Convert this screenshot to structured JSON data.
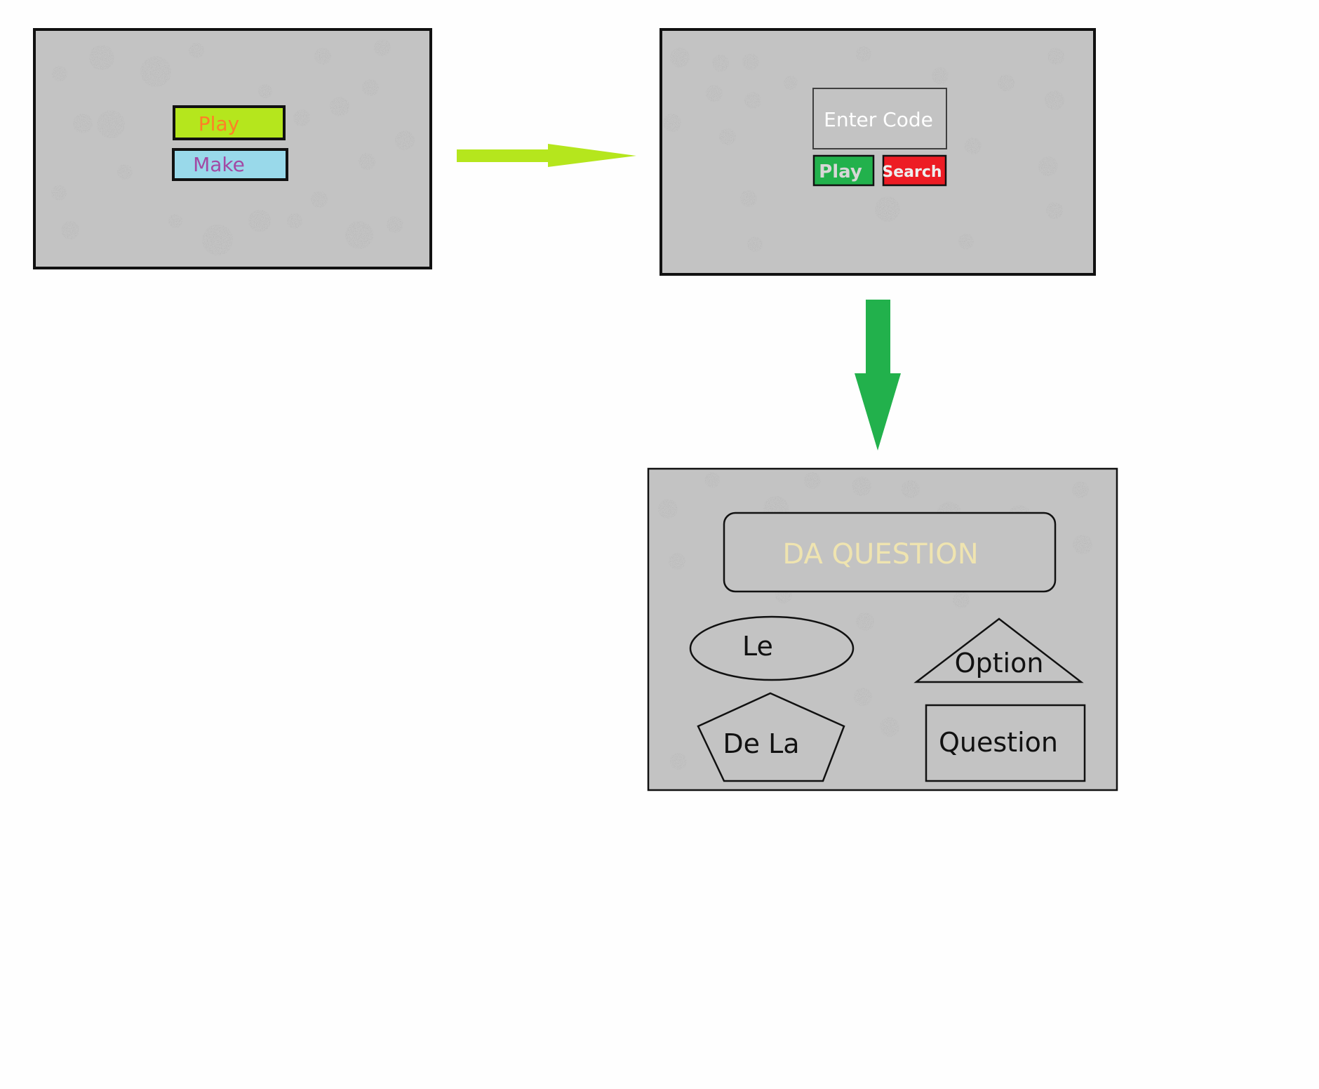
{
  "screen1": {
    "play_label": "Play",
    "make_label": "Make"
  },
  "screen2": {
    "code_input_text": "Enter Code",
    "play_label": "Play",
    "search_label": "Search"
  },
  "screen3": {
    "question_text": "DA QUESTION",
    "option_ellipse_label": "Le",
    "option_triangle_label": "Option",
    "option_pentagon_label": "De La",
    "option_rectangle_label": "Question"
  },
  "colors": {
    "page_background": "#fefefe",
    "panel_background": "#c3c3c3",
    "panel_border": "#111111",
    "play_button_1": "#b5e61d",
    "play_text_1": "#ff7f27",
    "make_button": "#99d9ea",
    "make_text": "#a349a4",
    "play_button_2": "#22b14c",
    "search_button": "#ed1c24",
    "question_text": "#efe4b0",
    "arrow_lime": "#b5e61d",
    "arrow_green": "#22b14c"
  }
}
